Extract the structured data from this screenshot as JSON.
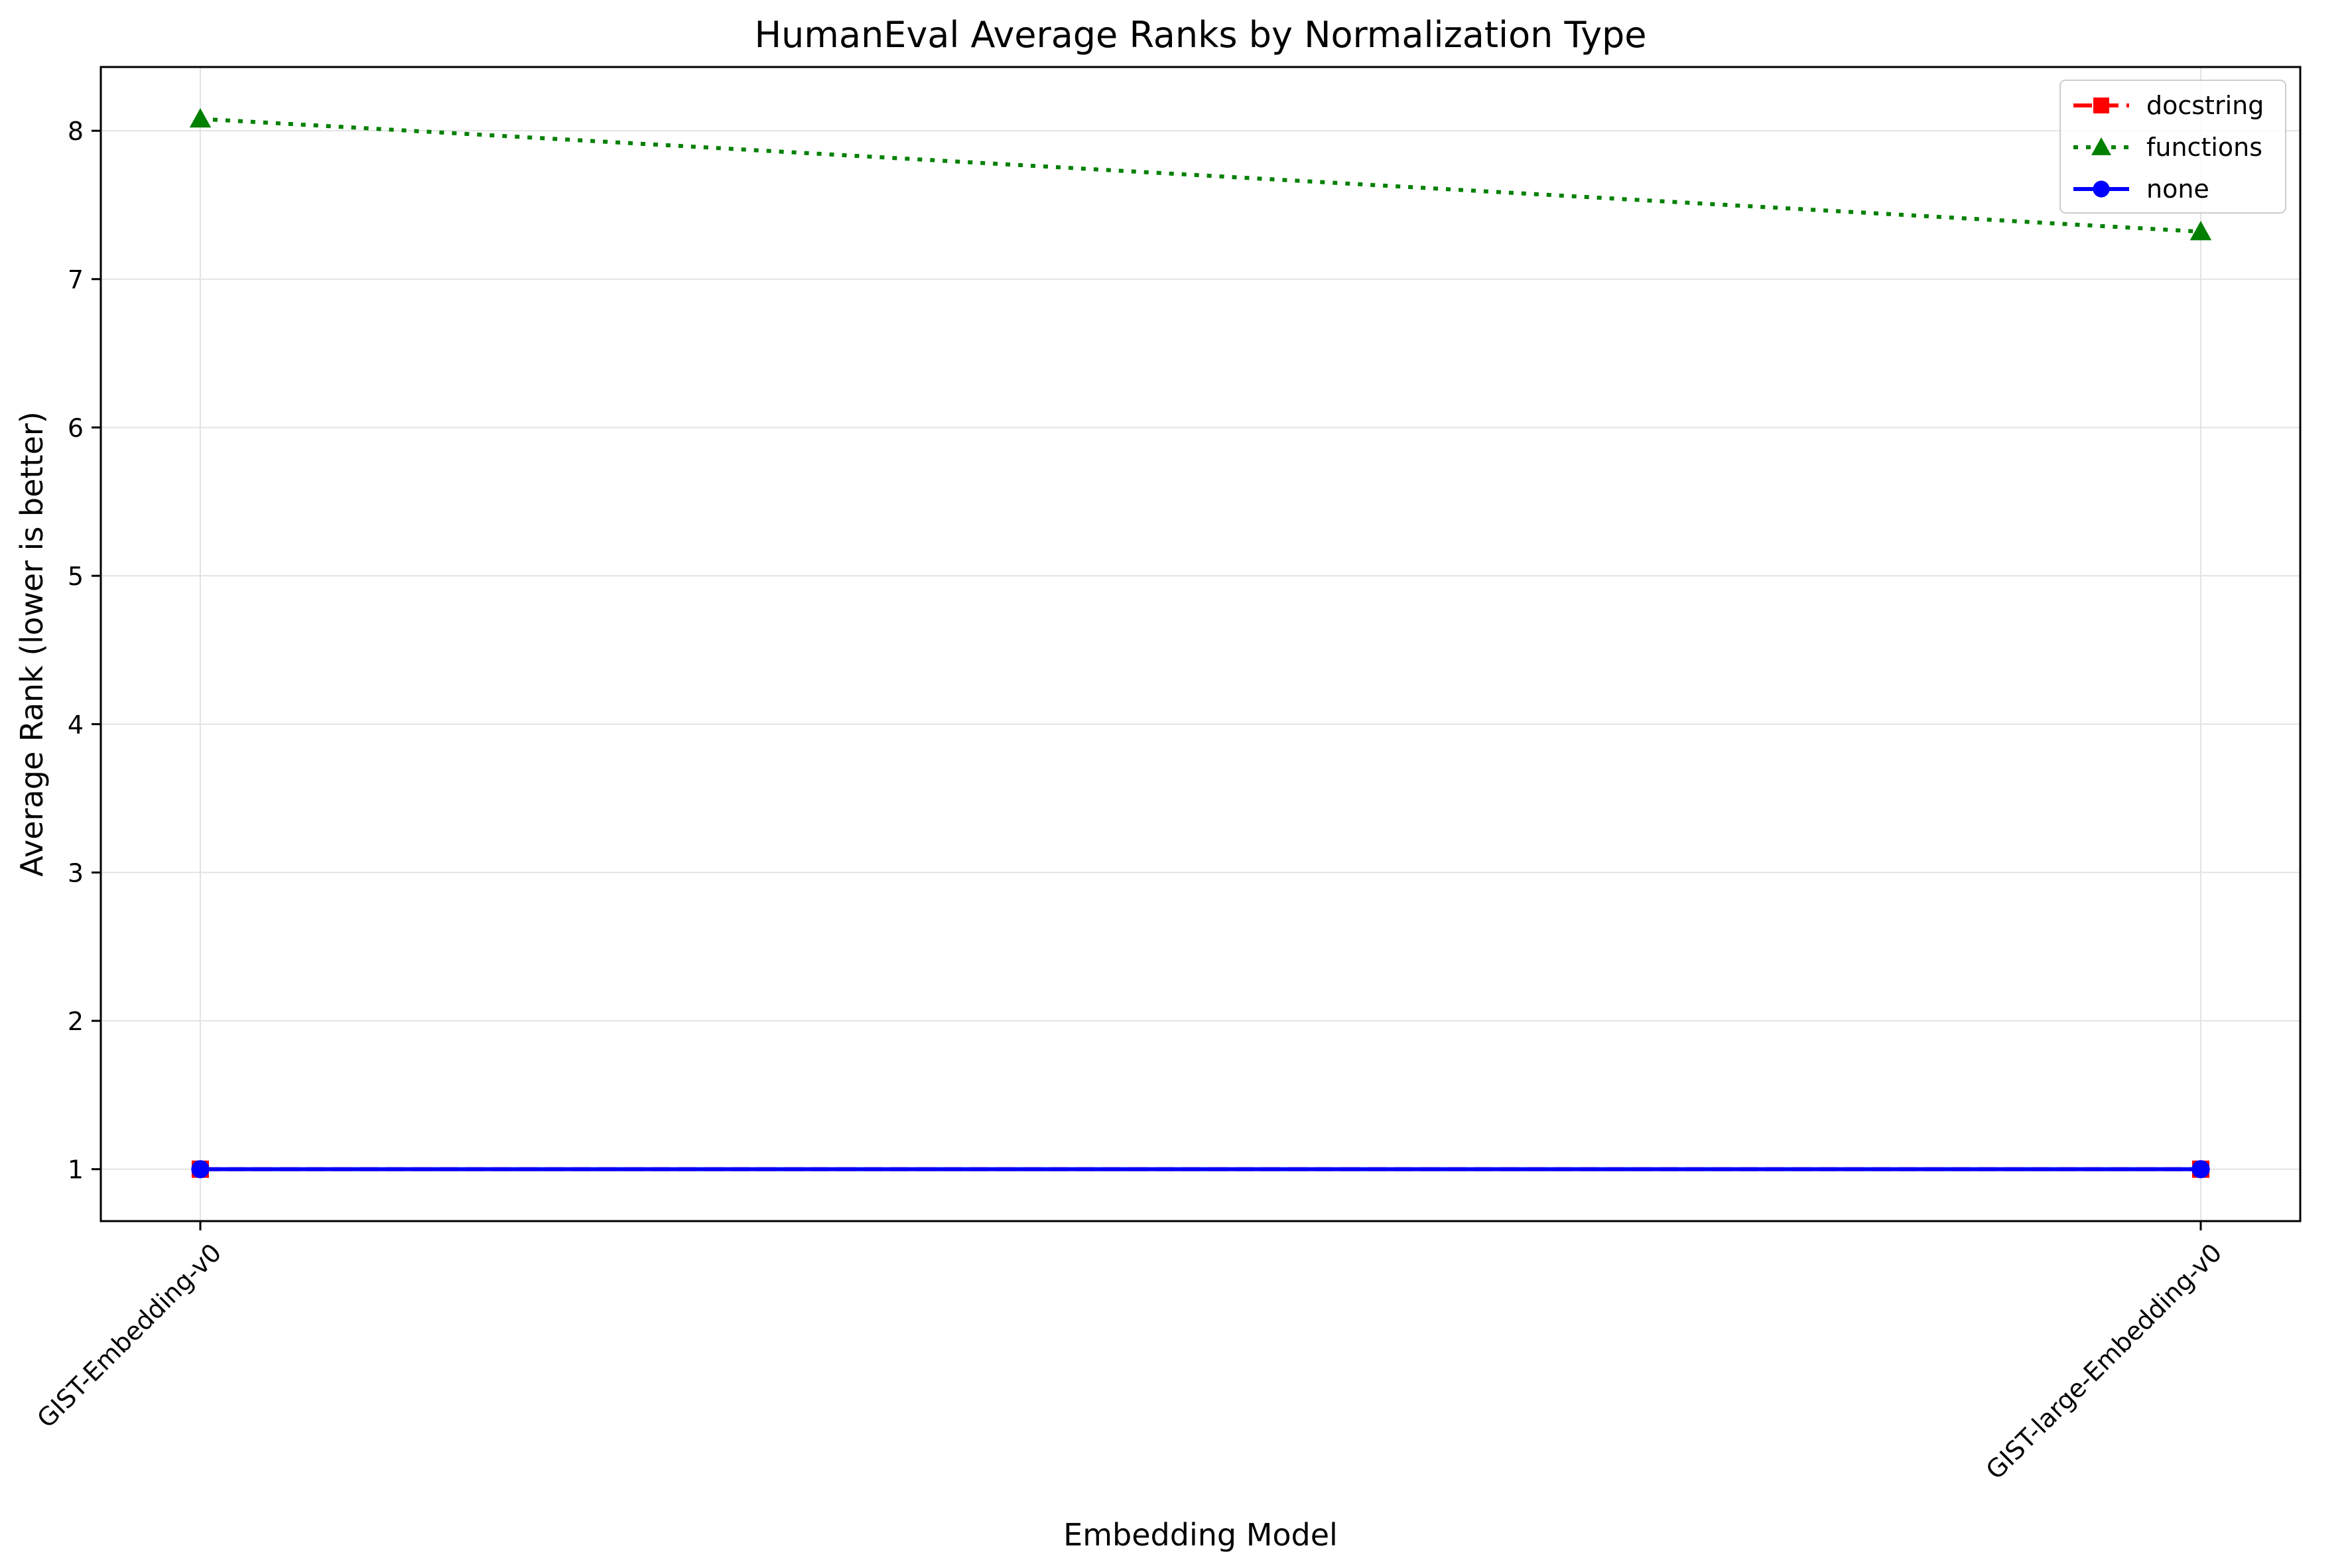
{
  "chart_data": {
    "type": "line",
    "title": "HumanEval Average Ranks by Normalization Type",
    "xlabel": "Embedding Model",
    "ylabel": "Average Rank (lower is better)",
    "categories": [
      "GIST-Embedding-v0",
      "GIST-large-Embedding-v0"
    ],
    "ylim": [
      0.65,
      8.43
    ],
    "yticks": [
      "1",
      "2",
      "3",
      "4",
      "5",
      "6",
      "7",
      "8"
    ],
    "grid": true,
    "legend_position": "top-right",
    "series": [
      {
        "name": "docstring",
        "values": [
          1.0,
          1.0
        ],
        "color": "#ff0000",
        "linestyle": "dashed",
        "marker": "square"
      },
      {
        "name": "functions",
        "values": [
          8.08,
          7.32
        ],
        "color": "#008000",
        "linestyle": "dotted",
        "marker": "triangle"
      },
      {
        "name": "none",
        "values": [
          1.0,
          1.0
        ],
        "color": "#0000ff",
        "linestyle": "solid",
        "marker": "circle"
      }
    ]
  }
}
